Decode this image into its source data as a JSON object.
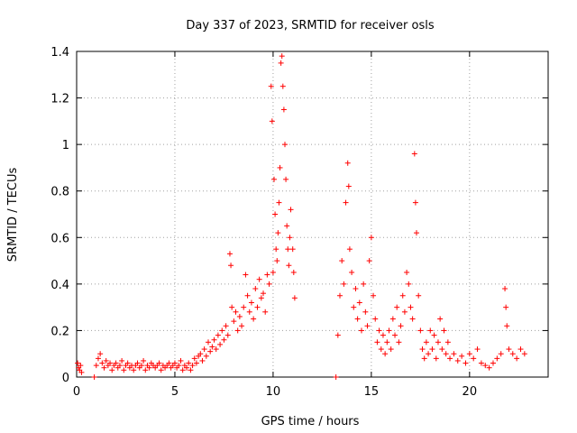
{
  "chart_data": {
    "type": "scatter",
    "title": "Day 337 of 2023, SRMTID for receiver osls",
    "xlabel": "GPS time / hours",
    "ylabel": "SRMTID / TECUs",
    "xlim": [
      0,
      24
    ],
    "ylim": [
      0,
      1.4
    ],
    "x_ticks": [
      0,
      5,
      10,
      15,
      20
    ],
    "x_tick_labels": [
      "0",
      "5",
      "10",
      "15",
      "20"
    ],
    "y_ticks": [
      0,
      0.2,
      0.4,
      0.6,
      0.8,
      1.0,
      1.2,
      1.4
    ],
    "y_tick_labels": [
      "0",
      "0.2",
      "0.4",
      "0.6",
      "0.8",
      "1",
      "1.2",
      "1.4"
    ],
    "grid": true,
    "marker": "+",
    "color": "#ff0000",
    "series": [
      {
        "name": "SRMTID",
        "points": [
          [
            0.05,
            0.06
          ],
          [
            0.1,
            0.04
          ],
          [
            0.15,
            0.03
          ],
          [
            0.2,
            0.05
          ],
          [
            0.25,
            0.02
          ],
          [
            0.9,
            0.0
          ],
          [
            1.0,
            0.05
          ],
          [
            1.1,
            0.08
          ],
          [
            1.2,
            0.1
          ],
          [
            1.3,
            0.06
          ],
          [
            1.4,
            0.04
          ],
          [
            1.5,
            0.07
          ],
          [
            1.6,
            0.05
          ],
          [
            1.7,
            0.06
          ],
          [
            1.8,
            0.03
          ],
          [
            1.9,
            0.05
          ],
          [
            2.0,
            0.06
          ],
          [
            2.1,
            0.04
          ],
          [
            2.2,
            0.05
          ],
          [
            2.3,
            0.07
          ],
          [
            2.4,
            0.03
          ],
          [
            2.5,
            0.05
          ],
          [
            2.6,
            0.06
          ],
          [
            2.7,
            0.04
          ],
          [
            2.8,
            0.05
          ],
          [
            2.9,
            0.03
          ],
          [
            3.0,
            0.05
          ],
          [
            3.1,
            0.06
          ],
          [
            3.2,
            0.04
          ],
          [
            3.3,
            0.05
          ],
          [
            3.4,
            0.07
          ],
          [
            3.5,
            0.03
          ],
          [
            3.6,
            0.05
          ],
          [
            3.7,
            0.04
          ],
          [
            3.8,
            0.06
          ],
          [
            3.9,
            0.05
          ],
          [
            4.0,
            0.04
          ],
          [
            4.1,
            0.05
          ],
          [
            4.2,
            0.06
          ],
          [
            4.3,
            0.03
          ],
          [
            4.4,
            0.05
          ],
          [
            4.5,
            0.04
          ],
          [
            4.6,
            0.05
          ],
          [
            4.7,
            0.06
          ],
          [
            4.8,
            0.04
          ],
          [
            4.9,
            0.05
          ],
          [
            5.0,
            0.06
          ],
          [
            5.1,
            0.04
          ],
          [
            5.2,
            0.05
          ],
          [
            5.3,
            0.07
          ],
          [
            5.4,
            0.03
          ],
          [
            5.5,
            0.05
          ],
          [
            5.6,
            0.04
          ],
          [
            5.7,
            0.06
          ],
          [
            5.8,
            0.03
          ],
          [
            5.9,
            0.05
          ],
          [
            6.0,
            0.08
          ],
          [
            6.1,
            0.06
          ],
          [
            6.2,
            0.09
          ],
          [
            6.3,
            0.1
          ],
          [
            6.4,
            0.07
          ],
          [
            6.5,
            0.12
          ],
          [
            6.6,
            0.09
          ],
          [
            6.7,
            0.15
          ],
          [
            6.8,
            0.11
          ],
          [
            6.9,
            0.13
          ],
          [
            7.0,
            0.16
          ],
          [
            7.1,
            0.12
          ],
          [
            7.2,
            0.18
          ],
          [
            7.3,
            0.14
          ],
          [
            7.4,
            0.2
          ],
          [
            7.5,
            0.16
          ],
          [
            7.6,
            0.22
          ],
          [
            7.7,
            0.18
          ],
          [
            7.8,
            0.53
          ],
          [
            7.85,
            0.48
          ],
          [
            7.9,
            0.3
          ],
          [
            8.0,
            0.24
          ],
          [
            8.1,
            0.28
          ],
          [
            8.2,
            0.2
          ],
          [
            8.3,
            0.26
          ],
          [
            8.4,
            0.22
          ],
          [
            8.5,
            0.3
          ],
          [
            8.6,
            0.44
          ],
          [
            8.7,
            0.35
          ],
          [
            8.8,
            0.28
          ],
          [
            8.9,
            0.32
          ],
          [
            9.0,
            0.25
          ],
          [
            9.1,
            0.38
          ],
          [
            9.2,
            0.3
          ],
          [
            9.3,
            0.42
          ],
          [
            9.4,
            0.34
          ],
          [
            9.5,
            0.36
          ],
          [
            9.6,
            0.28
          ],
          [
            9.7,
            0.44
          ],
          [
            9.8,
            0.4
          ],
          [
            9.9,
            1.25
          ],
          [
            9.95,
            1.1
          ],
          [
            10.0,
            0.45
          ],
          [
            10.05,
            0.85
          ],
          [
            10.1,
            0.7
          ],
          [
            10.15,
            0.55
          ],
          [
            10.2,
            0.5
          ],
          [
            10.25,
            0.62
          ],
          [
            10.3,
            0.75
          ],
          [
            10.35,
            0.9
          ],
          [
            10.4,
            1.35
          ],
          [
            10.45,
            1.38
          ],
          [
            10.5,
            1.25
          ],
          [
            10.55,
            1.15
          ],
          [
            10.6,
            1.0
          ],
          [
            10.65,
            0.85
          ],
          [
            10.7,
            0.65
          ],
          [
            10.75,
            0.55
          ],
          [
            10.8,
            0.48
          ],
          [
            10.85,
            0.6
          ],
          [
            10.9,
            0.72
          ],
          [
            11.0,
            0.55
          ],
          [
            11.05,
            0.45
          ],
          [
            11.1,
            0.34
          ],
          [
            13.2,
            0.0
          ],
          [
            13.3,
            0.18
          ],
          [
            13.4,
            0.35
          ],
          [
            13.5,
            0.5
          ],
          [
            13.6,
            0.4
          ],
          [
            13.7,
            0.75
          ],
          [
            13.8,
            0.92
          ],
          [
            13.85,
            0.82
          ],
          [
            13.9,
            0.55
          ],
          [
            14.0,
            0.45
          ],
          [
            14.1,
            0.3
          ],
          [
            14.2,
            0.38
          ],
          [
            14.3,
            0.25
          ],
          [
            14.4,
            0.32
          ],
          [
            14.5,
            0.2
          ],
          [
            14.6,
            0.4
          ],
          [
            14.7,
            0.28
          ],
          [
            14.8,
            0.22
          ],
          [
            14.9,
            0.5
          ],
          [
            15.0,
            0.6
          ],
          [
            15.1,
            0.35
          ],
          [
            15.2,
            0.25
          ],
          [
            15.3,
            0.15
          ],
          [
            15.4,
            0.2
          ],
          [
            15.5,
            0.12
          ],
          [
            15.6,
            0.18
          ],
          [
            15.7,
            0.1
          ],
          [
            15.8,
            0.15
          ],
          [
            15.9,
            0.2
          ],
          [
            16.0,
            0.12
          ],
          [
            16.1,
            0.25
          ],
          [
            16.2,
            0.18
          ],
          [
            16.3,
            0.3
          ],
          [
            16.4,
            0.15
          ],
          [
            16.5,
            0.22
          ],
          [
            16.6,
            0.35
          ],
          [
            16.7,
            0.28
          ],
          [
            16.8,
            0.45
          ],
          [
            16.9,
            0.4
          ],
          [
            17.0,
            0.3
          ],
          [
            17.1,
            0.25
          ],
          [
            17.2,
            0.96
          ],
          [
            17.25,
            0.75
          ],
          [
            17.3,
            0.62
          ],
          [
            17.4,
            0.35
          ],
          [
            17.5,
            0.2
          ],
          [
            17.6,
            0.12
          ],
          [
            17.7,
            0.08
          ],
          [
            17.8,
            0.15
          ],
          [
            17.9,
            0.1
          ],
          [
            18.0,
            0.2
          ],
          [
            18.1,
            0.12
          ],
          [
            18.2,
            0.18
          ],
          [
            18.3,
            0.08
          ],
          [
            18.4,
            0.15
          ],
          [
            18.5,
            0.25
          ],
          [
            18.6,
            0.12
          ],
          [
            18.7,
            0.2
          ],
          [
            18.8,
            0.1
          ],
          [
            18.9,
            0.15
          ],
          [
            19.0,
            0.08
          ],
          [
            19.2,
            0.1
          ],
          [
            19.4,
            0.07
          ],
          [
            19.6,
            0.09
          ],
          [
            19.8,
            0.06
          ],
          [
            20.0,
            0.1
          ],
          [
            20.2,
            0.08
          ],
          [
            20.4,
            0.12
          ],
          [
            20.6,
            0.06
          ],
          [
            20.8,
            0.05
          ],
          [
            21.0,
            0.04
          ],
          [
            21.2,
            0.06
          ],
          [
            21.4,
            0.08
          ],
          [
            21.6,
            0.1
          ],
          [
            21.8,
            0.38
          ],
          [
            21.85,
            0.3
          ],
          [
            21.9,
            0.22
          ],
          [
            22.0,
            0.12
          ],
          [
            22.2,
            0.1
          ],
          [
            22.4,
            0.08
          ],
          [
            22.6,
            0.12
          ],
          [
            22.8,
            0.1
          ]
        ]
      }
    ]
  }
}
